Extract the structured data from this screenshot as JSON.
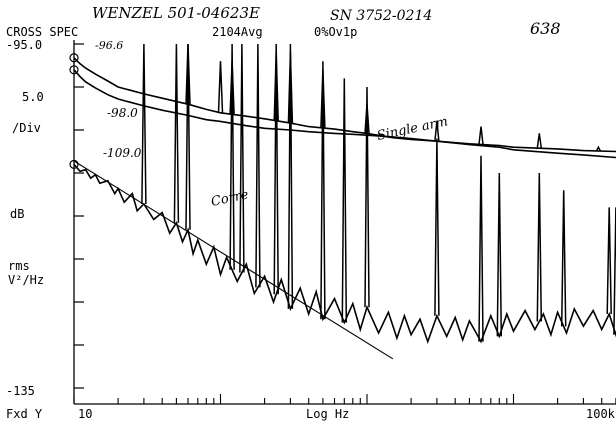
{
  "chart_data": {
    "type": "line",
    "header": {
      "mode": "CROSS SPEC",
      "averages": "2104Avg",
      "overload": "0%Ov1p"
    },
    "handwritten": {
      "sensor": "WENZEL 501-04623E",
      "serial": "SN 3752-0214",
      "page": "638",
      "curve_labels": [
        "-96.6",
        "-98.0",
        "-109.0"
      ],
      "trace_labels": [
        "Single arm",
        "Corre"
      ]
    },
    "y_axis": {
      "top_label": "-95.0",
      "bottom_label": "-135",
      "scale_value": "5.0",
      "scale_unit": "/Div",
      "unit_db": "dB",
      "unit_rms": "rms",
      "unit_psd": "V²/Hz",
      "ylim": [
        -135,
        -95
      ]
    },
    "x_axis": {
      "scale": "log",
      "mode_label": "Fxd Y",
      "start_label": "10",
      "center_label": "Log Hz",
      "end_label": "100k",
      "xlim": [
        10,
        100000
      ]
    },
    "grid": "off",
    "series": [
      {
        "points": [
          [
            10,
            -96.6
          ],
          [
            11,
            -97.3
          ],
          [
            12,
            -97.8
          ],
          [
            14,
            -98.5
          ],
          [
            17,
            -99.3
          ],
          [
            20,
            -100.0
          ],
          [
            30,
            -100.8
          ],
          [
            40,
            -101.3
          ],
          [
            60,
            -102.0
          ],
          [
            80,
            -102.6
          ],
          [
            100,
            -103.0
          ],
          [
            150,
            -103.4
          ],
          [
            200,
            -103.7
          ],
          [
            300,
            -104.2
          ],
          [
            400,
            -104.6
          ],
          [
            600,
            -104.9
          ],
          [
            800,
            -105.2
          ],
          [
            1000,
            -105.4
          ],
          [
            1500,
            -105.9
          ],
          [
            2000,
            -106.1
          ],
          [
            3000,
            -106.3
          ],
          [
            5000,
            -106.6
          ],
          [
            8000,
            -106.8
          ],
          [
            10000,
            -107.0
          ],
          [
            20000,
            -107.2
          ],
          [
            30000,
            -107.4
          ],
          [
            50000,
            -107.5
          ],
          [
            70000,
            -107.6
          ],
          [
            100000,
            -107.7
          ]
        ],
        "spikes": [
          [
            60,
            -95
          ],
          [
            100,
            -97
          ],
          [
            120,
            -97
          ],
          [
            240,
            -96
          ],
          [
            300,
            -96
          ],
          [
            500,
            -98
          ],
          [
            1000,
            -102
          ],
          [
            3000,
            -104
          ],
          [
            6000,
            -104.6
          ],
          [
            15000,
            -105.4
          ],
          [
            38000,
            -107
          ],
          [
            65000,
            -106.4
          ],
          [
            90000,
            -106.6
          ]
        ]
      },
      {
        "points": [
          [
            10,
            -98.0
          ],
          [
            11,
            -98.8
          ],
          [
            12,
            -99.4
          ],
          [
            14,
            -100.1
          ],
          [
            17,
            -100.9
          ],
          [
            20,
            -101.4
          ],
          [
            30,
            -102.2
          ],
          [
            40,
            -102.7
          ],
          [
            60,
            -103.3
          ],
          [
            80,
            -103.8
          ],
          [
            100,
            -104.0
          ],
          [
            150,
            -104.5
          ],
          [
            200,
            -104.8
          ],
          [
            300,
            -105.0
          ],
          [
            400,
            -105.2
          ],
          [
            600,
            -105.4
          ],
          [
            800,
            -105.5
          ],
          [
            1000,
            -105.6
          ],
          [
            1500,
            -105.8
          ],
          [
            2000,
            -106.0
          ],
          [
            3000,
            -106.3
          ],
          [
            5000,
            -106.7
          ],
          [
            8000,
            -107.0
          ],
          [
            10000,
            -107.3
          ],
          [
            20000,
            -107.7
          ],
          [
            30000,
            -107.9
          ],
          [
            50000,
            -108.2
          ],
          [
            70000,
            -108.5
          ],
          [
            100000,
            -108.9
          ]
        ]
      },
      {
        "points": [
          [
            10,
            -109.0
          ],
          [
            11,
            -109.8
          ],
          [
            12,
            -109.6
          ],
          [
            13,
            -110.6
          ],
          [
            14,
            -110.2
          ],
          [
            15,
            -111.2
          ],
          [
            17,
            -110.9
          ],
          [
            19,
            -112.4
          ],
          [
            20,
            -111.8
          ],
          [
            22,
            -113.4
          ],
          [
            25,
            -112.4
          ],
          [
            27,
            -114.4
          ],
          [
            30,
            -113.6
          ],
          [
            35,
            -115.4
          ],
          [
            40,
            -114.6
          ],
          [
            45,
            -117.0
          ],
          [
            50,
            -115.8
          ],
          [
            55,
            -118.0
          ],
          [
            60,
            -116.6
          ],
          [
            65,
            -119.4
          ],
          [
            70,
            -117.8
          ],
          [
            80,
            -120.6
          ],
          [
            90,
            -118.6
          ],
          [
            100,
            -121.8
          ],
          [
            110,
            -119.8
          ],
          [
            130,
            -122.6
          ],
          [
            150,
            -120.6
          ],
          [
            170,
            -124.0
          ],
          [
            200,
            -122.0
          ],
          [
            230,
            -125.0
          ],
          [
            260,
            -122.4
          ],
          [
            300,
            -125.8
          ],
          [
            350,
            -123.4
          ],
          [
            400,
            -126.4
          ],
          [
            450,
            -123.8
          ],
          [
            500,
            -127.0
          ],
          [
            600,
            -124.6
          ],
          [
            700,
            -127.4
          ],
          [
            800,
            -125.2
          ],
          [
            900,
            -128.2
          ],
          [
            1000,
            -125.6
          ],
          [
            1200,
            -128.6
          ],
          [
            1400,
            -126.2
          ],
          [
            1600,
            -129.2
          ],
          [
            1800,
            -126.6
          ],
          [
            2000,
            -128.8
          ],
          [
            2300,
            -127.0
          ],
          [
            2600,
            -129.6
          ],
          [
            3000,
            -126.6
          ],
          [
            3500,
            -129.0
          ],
          [
            4000,
            -126.8
          ],
          [
            4500,
            -129.4
          ],
          [
            5000,
            -127.2
          ],
          [
            6000,
            -129.6
          ],
          [
            7000,
            -126.6
          ],
          [
            8000,
            -129.0
          ],
          [
            9000,
            -126.4
          ],
          [
            10000,
            -128.4
          ],
          [
            12000,
            -126.0
          ],
          [
            14000,
            -128.2
          ],
          [
            16000,
            -126.4
          ],
          [
            18000,
            -128.8
          ],
          [
            20000,
            -126.2
          ],
          [
            23000,
            -128.6
          ],
          [
            26000,
            -125.8
          ],
          [
            30000,
            -127.8
          ],
          [
            35000,
            -126.0
          ],
          [
            40000,
            -128.2
          ],
          [
            45000,
            -126.4
          ],
          [
            50000,
            -128.8
          ],
          [
            55000,
            -126.8
          ],
          [
            60000,
            -129.6
          ],
          [
            70000,
            -127.4
          ],
          [
            80000,
            -130.0
          ],
          [
            90000,
            -128.0
          ],
          [
            100000,
            -130.4
          ]
        ],
        "spikes": [
          [
            30,
            -95
          ],
          [
            50,
            -95
          ],
          [
            60,
            -95
          ],
          [
            120,
            -95
          ],
          [
            140,
            -95
          ],
          [
            180,
            -95
          ],
          [
            240,
            -95
          ],
          [
            300,
            -95
          ],
          [
            500,
            -97
          ],
          [
            700,
            -99
          ],
          [
            1000,
            -100
          ],
          [
            3000,
            -106
          ],
          [
            6000,
            -108
          ],
          [
            8000,
            -110
          ],
          [
            15000,
            -110
          ],
          [
            22000,
            -112
          ],
          [
            45000,
            -114
          ],
          [
            50000,
            -114
          ],
          [
            60000,
            -104
          ]
        ]
      },
      {
        "points": [
          [
            10,
            -108.6
          ],
          [
            1500,
            -131.6
          ]
        ]
      }
    ]
  }
}
